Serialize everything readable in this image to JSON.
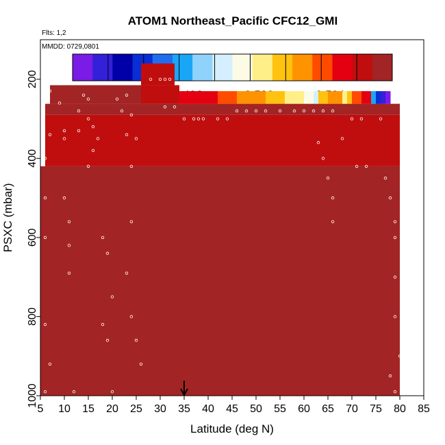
{
  "chart_data": {
    "type": "heatmap",
    "title": "ATOM1 Northeast_Pacific CFC12_GMI",
    "flights_label": "Flts: 1,2",
    "date_label": "MMDD: 0729,0801",
    "xlabel": "Latitude (deg N)",
    "ylabel": "PSXC (mbar)",
    "xlim": [
      5,
      85
    ],
    "ylim": [
      1000,
      100
    ],
    "x_ticks": [
      5,
      10,
      15,
      20,
      25,
      30,
      35,
      40,
      45,
      50,
      55,
      60,
      65,
      70,
      75,
      80,
      85
    ],
    "y_ticks": [
      200,
      400,
      600,
      800,
      1000
    ],
    "colorbar": {
      "min": 0.4895,
      "max": 0.5075,
      "tick_values": [
        0.492,
        0.496,
        0.5,
        0.504
      ],
      "tick_labels": [
        "0.492",
        "0.496",
        "0.500",
        "0.504"
      ],
      "colors": [
        "#7a1ce6",
        "#3320d9",
        "#0000a8",
        "#0a2ed6",
        "#1f6ef2",
        "#1aa6f7",
        "#8fd3fb",
        "#d6efff",
        "#fbfbe6",
        "#ffef88",
        "#ffc20f",
        "#ff9200",
        "#ff4b00",
        "#e40010",
        "#c00e0e",
        "#a32424"
      ]
    },
    "marker_latitude": 35,
    "regions": [
      {
        "lat": [
          26,
          33
        ],
        "p": [
          160,
          215
        ],
        "value": 0.5055
      },
      {
        "lat": [
          7,
          26
        ],
        "p": [
          215,
          262
        ],
        "value": 0.5065
      },
      {
        "lat": [
          26,
          34
        ],
        "p": [
          215,
          262
        ],
        "value": 0.506
      },
      {
        "lat": [
          6,
          80
        ],
        "p": [
          262,
          290
        ],
        "value": 0.5065
      },
      {
        "lat": [
          6,
          80
        ],
        "p": [
          290,
          420
        ],
        "value": 0.5062
      },
      {
        "lat": [
          5,
          80
        ],
        "p": [
          420,
          1000
        ],
        "value": 0.5068
      }
    ],
    "gradient_row_lat": [
      34,
      36,
      38,
      40,
      42,
      44,
      46,
      48,
      50,
      52,
      54,
      56,
      58,
      60,
      62,
      63,
      64,
      65,
      66,
      67,
      68,
      69,
      70,
      71,
      72,
      73,
      74,
      75,
      76,
      77,
      78
    ],
    "gradient_row_values": [
      0.5052,
      0.5048,
      0.5045,
      0.5042,
      0.5038,
      0.5032,
      0.5028,
      0.5024,
      0.502,
      0.5015,
      0.501,
      0.5005,
      0.5,
      0.499,
      0.498,
      0.501,
      0.5018,
      0.5022,
      0.5025,
      0.502,
      0.5,
      0.5015,
      0.503,
      0.504,
      0.5045,
      0.505,
      0.4955,
      0.4935,
      0.4915,
      0.49,
      0.49
    ],
    "points": [
      [
        7,
        230
      ],
      [
        7,
        340
      ],
      [
        6,
        400
      ],
      [
        6,
        500
      ],
      [
        6,
        600
      ],
      [
        6,
        820
      ],
      [
        6,
        990
      ],
      [
        7,
        920
      ],
      [
        9,
        260
      ],
      [
        10,
        330
      ],
      [
        10,
        350
      ],
      [
        10,
        500
      ],
      [
        11,
        560
      ],
      [
        11,
        620
      ],
      [
        11,
        690
      ],
      [
        12,
        990
      ],
      [
        13,
        330
      ],
      [
        13,
        280
      ],
      [
        14,
        240
      ],
      [
        15,
        250
      ],
      [
        15,
        300
      ],
      [
        16,
        320
      ],
      [
        16,
        380
      ],
      [
        15,
        420
      ],
      [
        17,
        350
      ],
      [
        18,
        600
      ],
      [
        19,
        640
      ],
      [
        20,
        750
      ],
      [
        18,
        820
      ],
      [
        19,
        860
      ],
      [
        20,
        990
      ],
      [
        21,
        250
      ],
      [
        22,
        280
      ],
      [
        23,
        240
      ],
      [
        23,
        340
      ],
      [
        24,
        290
      ],
      [
        25,
        350
      ],
      [
        24,
        420
      ],
      [
        24,
        560
      ],
      [
        23,
        690
      ],
      [
        24,
        800
      ],
      [
        25,
        860
      ],
      [
        26,
        920
      ],
      [
        28,
        200
      ],
      [
        30,
        200
      ],
      [
        31,
        200
      ],
      [
        32,
        200
      ],
      [
        31,
        270
      ],
      [
        33,
        270
      ],
      [
        35,
        300
      ],
      [
        37,
        300
      ],
      [
        38,
        300
      ],
      [
        39,
        300
      ],
      [
        42,
        300
      ],
      [
        44,
        300
      ],
      [
        46,
        280
      ],
      [
        48,
        280
      ],
      [
        50,
        280
      ],
      [
        52,
        280
      ],
      [
        55,
        280
      ],
      [
        58,
        280
      ],
      [
        60,
        280
      ],
      [
        62,
        280
      ],
      [
        64,
        280
      ],
      [
        66,
        280
      ],
      [
        63,
        360
      ],
      [
        64,
        400
      ],
      [
        65,
        450
      ],
      [
        66,
        500
      ],
      [
        66,
        560
      ],
      [
        68,
        350
      ],
      [
        70,
        300
      ],
      [
        71,
        420
      ],
      [
        72,
        300
      ],
      [
        73,
        420
      ],
      [
        76,
        300
      ],
      [
        77,
        450
      ],
      [
        78,
        500
      ],
      [
        79,
        560
      ],
      [
        79,
        600
      ],
      [
        79,
        700
      ],
      [
        79,
        800
      ],
      [
        80,
        900
      ],
      [
        78,
        950
      ],
      [
        79,
        990
      ]
    ]
  }
}
